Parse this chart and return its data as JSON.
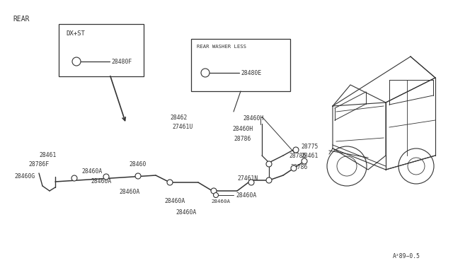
{
  "bg": "#ffffff",
  "lc": "#333333",
  "tc": "#333333",
  "fs": 6.5,
  "sf": 5.8,
  "rear_label": "REAR",
  "box1_label": "DX+ST",
  "box1_part": "28480F",
  "box2_label": "REAR WASHER LESS",
  "box2_part": "28480E",
  "footnote": "A²89−0.5"
}
